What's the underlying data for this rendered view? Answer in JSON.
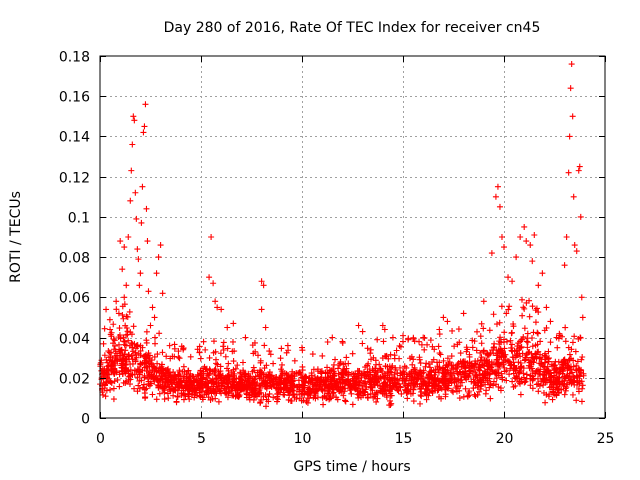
{
  "chart_data": {
    "type": "scatter",
    "title": "Day 280 of 2016, Rate Of TEC Index for receiver cn45",
    "xlabel": "GPS time / hours",
    "ylabel": "ROTI / TECUs",
    "xlim": [
      0,
      25
    ],
    "ylim": [
      0,
      0.18
    ],
    "grid": true,
    "marker": "+",
    "color": "#ff0000",
    "x_ticks": [
      0,
      5,
      10,
      15,
      20,
      25
    ],
    "x_tick_labels": [
      "0",
      "5",
      "10",
      "15",
      "20",
      "25"
    ],
    "y_ticks": [
      0,
      0.02,
      0.04,
      0.06,
      0.08,
      0.1,
      0.12,
      0.14,
      0.16,
      0.18
    ],
    "y_tick_labels": [
      "0",
      "0.02",
      "0.04",
      "0.06",
      "0.08",
      "0.1",
      "0.12",
      "0.14",
      "0.16",
      "0.18"
    ],
    "density_profile": [
      {
        "x": 0.0,
        "low": 0.006,
        "high": 0.03
      },
      {
        "x": 0.5,
        "low": 0.006,
        "high": 0.038
      },
      {
        "x": 1.0,
        "low": 0.005,
        "high": 0.048
      },
      {
        "x": 1.5,
        "low": 0.005,
        "high": 0.045
      },
      {
        "x": 2.0,
        "low": 0.006,
        "high": 0.04
      },
      {
        "x": 2.5,
        "low": 0.005,
        "high": 0.035
      },
      {
        "x": 3.0,
        "low": 0.005,
        "high": 0.03
      },
      {
        "x": 4.0,
        "low": 0.005,
        "high": 0.026
      },
      {
        "x": 5.0,
        "low": 0.005,
        "high": 0.027
      },
      {
        "x": 6.0,
        "low": 0.005,
        "high": 0.027
      },
      {
        "x": 7.0,
        "low": 0.005,
        "high": 0.025
      },
      {
        "x": 8.0,
        "low": 0.005,
        "high": 0.026
      },
      {
        "x": 9.0,
        "low": 0.005,
        "high": 0.026
      },
      {
        "x": 10.0,
        "low": 0.005,
        "high": 0.025
      },
      {
        "x": 11.0,
        "low": 0.005,
        "high": 0.026
      },
      {
        "x": 12.0,
        "low": 0.005,
        "high": 0.027
      },
      {
        "x": 13.0,
        "low": 0.005,
        "high": 0.027
      },
      {
        "x": 14.0,
        "low": 0.004,
        "high": 0.028
      },
      {
        "x": 15.0,
        "low": 0.005,
        "high": 0.029
      },
      {
        "x": 16.0,
        "low": 0.005,
        "high": 0.03
      },
      {
        "x": 17.0,
        "low": 0.005,
        "high": 0.031
      },
      {
        "x": 18.0,
        "low": 0.005,
        "high": 0.033
      },
      {
        "x": 19.0,
        "low": 0.005,
        "high": 0.036
      },
      {
        "x": 19.5,
        "low": 0.004,
        "high": 0.044
      },
      {
        "x": 20.0,
        "low": 0.004,
        "high": 0.046
      },
      {
        "x": 20.5,
        "low": 0.004,
        "high": 0.045
      },
      {
        "x": 21.0,
        "low": 0.004,
        "high": 0.05
      },
      {
        "x": 21.5,
        "low": 0.005,
        "high": 0.045
      },
      {
        "x": 22.0,
        "low": 0.005,
        "high": 0.036
      },
      {
        "x": 22.5,
        "low": 0.005,
        "high": 0.03
      },
      {
        "x": 23.0,
        "low": 0.005,
        "high": 0.035
      },
      {
        "x": 23.5,
        "low": 0.005,
        "high": 0.032
      },
      {
        "x": 23.95,
        "low": 0.006,
        "high": 0.028
      }
    ],
    "points": [
      [
        1.0,
        0.088
      ],
      [
        1.1,
        0.074
      ],
      [
        1.2,
        0.085
      ],
      [
        1.3,
        0.066
      ],
      [
        1.4,
        0.09
      ],
      [
        1.5,
        0.108
      ],
      [
        1.55,
        0.123
      ],
      [
        1.6,
        0.136
      ],
      [
        1.65,
        0.15
      ],
      [
        1.7,
        0.148
      ],
      [
        1.75,
        0.112
      ],
      [
        1.8,
        0.099
      ],
      [
        1.85,
        0.084
      ],
      [
        1.9,
        0.079
      ],
      [
        1.95,
        0.066
      ],
      [
        2.0,
        0.072
      ],
      [
        2.05,
        0.097
      ],
      [
        2.1,
        0.115
      ],
      [
        2.15,
        0.142
      ],
      [
        2.2,
        0.145
      ],
      [
        2.25,
        0.156
      ],
      [
        2.3,
        0.104
      ],
      [
        2.35,
        0.088
      ],
      [
        2.4,
        0.063
      ],
      [
        2.5,
        0.046
      ],
      [
        2.6,
        0.055
      ],
      [
        2.8,
        0.072
      ],
      [
        2.9,
        0.08
      ],
      [
        3.0,
        0.086
      ],
      [
        3.1,
        0.062
      ],
      [
        0.3,
        0.054
      ],
      [
        0.5,
        0.044
      ],
      [
        0.8,
        0.058
      ],
      [
        1.2,
        0.06
      ],
      [
        2.7,
        0.05
      ],
      [
        5.5,
        0.09
      ],
      [
        5.4,
        0.07
      ],
      [
        5.6,
        0.067
      ],
      [
        5.7,
        0.058
      ],
      [
        5.8,
        0.055
      ],
      [
        6.0,
        0.054
      ],
      [
        6.3,
        0.045
      ],
      [
        6.6,
        0.047
      ],
      [
        7.2,
        0.04
      ],
      [
        8.0,
        0.068
      ],
      [
        8.1,
        0.066
      ],
      [
        8.0,
        0.054
      ],
      [
        8.2,
        0.045
      ],
      [
        9.3,
        0.036
      ],
      [
        10.0,
        0.035
      ],
      [
        11.5,
        0.04
      ],
      [
        12.0,
        0.038
      ],
      [
        12.8,
        0.046
      ],
      [
        13.0,
        0.043
      ],
      [
        14.0,
        0.046
      ],
      [
        14.1,
        0.044
      ],
      [
        14.5,
        0.04
      ],
      [
        15.0,
        0.038
      ],
      [
        16.0,
        0.04
      ],
      [
        16.8,
        0.044
      ],
      [
        17.0,
        0.05
      ],
      [
        17.2,
        0.048
      ],
      [
        18.0,
        0.052
      ],
      [
        19.0,
        0.058
      ],
      [
        19.4,
        0.082
      ],
      [
        19.6,
        0.11
      ],
      [
        19.7,
        0.115
      ],
      [
        19.8,
        0.105
      ],
      [
        19.9,
        0.09
      ],
      [
        20.0,
        0.085
      ],
      [
        20.2,
        0.07
      ],
      [
        20.4,
        0.068
      ],
      [
        20.6,
        0.08
      ],
      [
        20.8,
        0.09
      ],
      [
        21.0,
        0.095
      ],
      [
        21.1,
        0.088
      ],
      [
        21.3,
        0.086
      ],
      [
        21.4,
        0.078
      ],
      [
        21.5,
        0.091
      ],
      [
        21.7,
        0.066
      ],
      [
        21.9,
        0.072
      ],
      [
        22.1,
        0.055
      ],
      [
        22.3,
        0.048
      ],
      [
        22.6,
        0.04
      ],
      [
        23.1,
        0.09
      ],
      [
        23.2,
        0.122
      ],
      [
        23.25,
        0.14
      ],
      [
        23.3,
        0.164
      ],
      [
        23.35,
        0.176
      ],
      [
        23.4,
        0.15
      ],
      [
        23.45,
        0.11
      ],
      [
        23.5,
        0.086
      ],
      [
        23.6,
        0.083
      ],
      [
        23.7,
        0.123
      ],
      [
        23.75,
        0.125
      ],
      [
        23.8,
        0.1
      ],
      [
        23.85,
        0.06
      ],
      [
        23.9,
        0.05
      ],
      [
        23.0,
        0.076
      ]
    ]
  }
}
